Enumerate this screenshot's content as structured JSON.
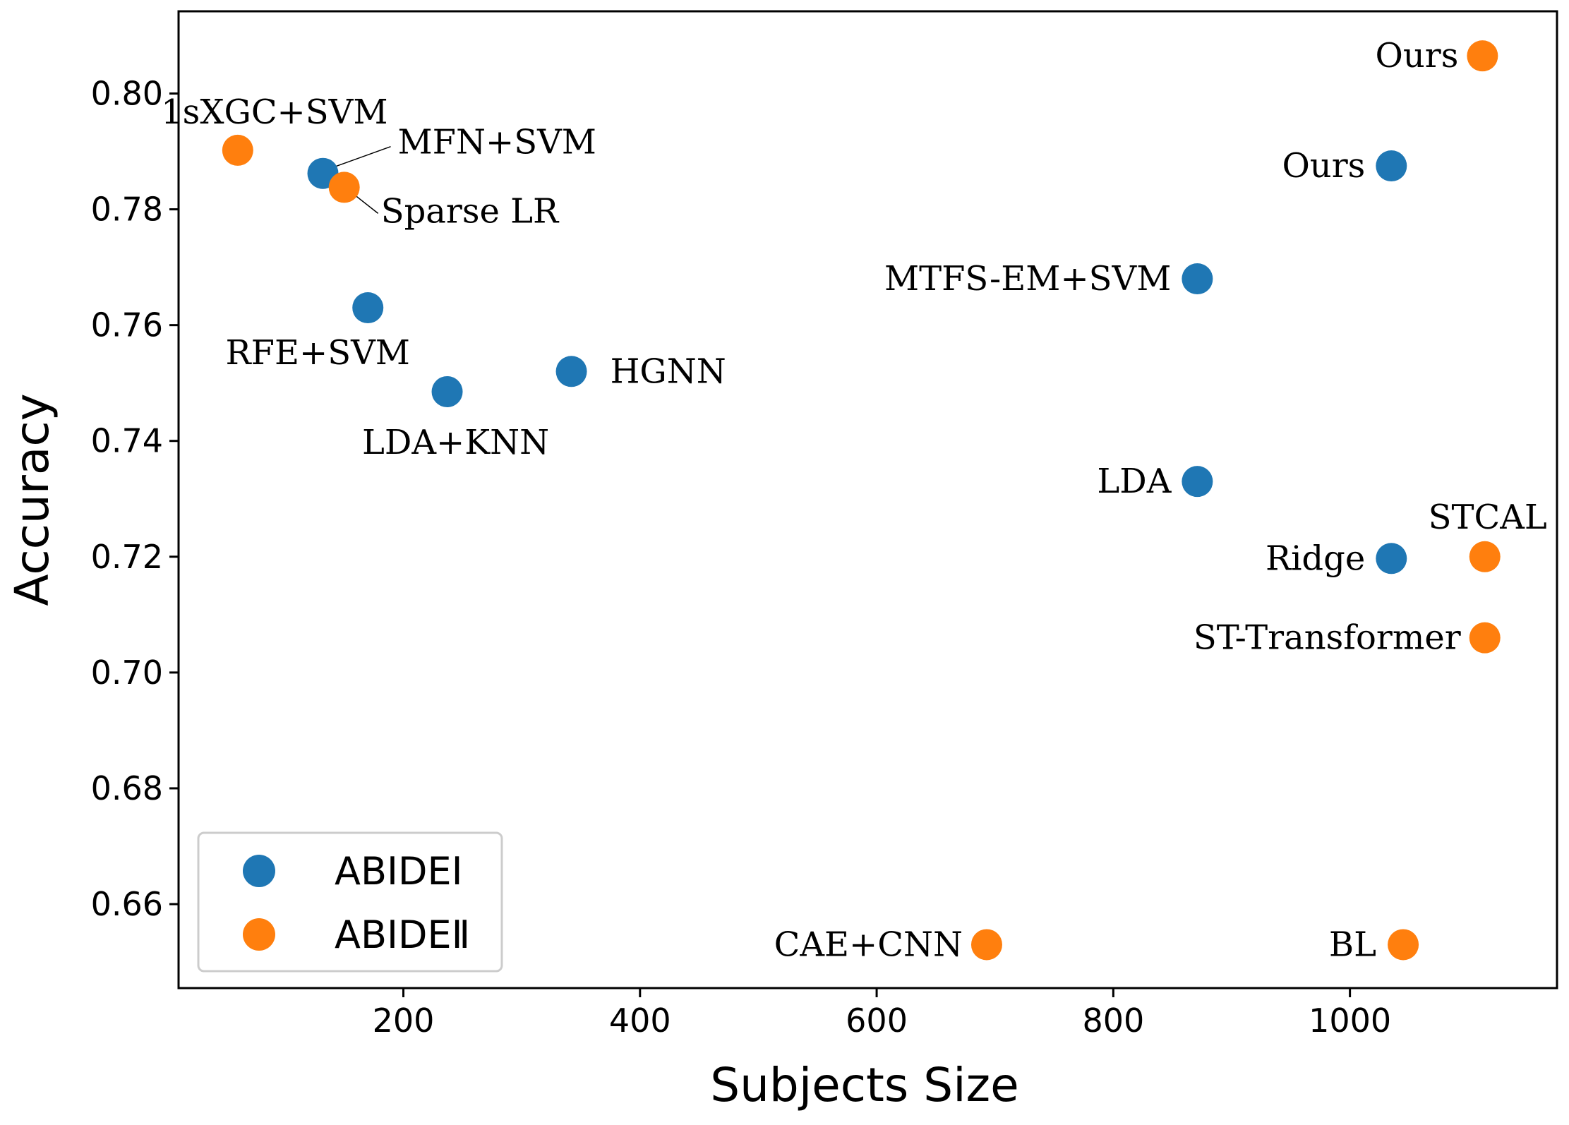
{
  "chart_data": {
    "type": "scatter",
    "title": "",
    "xlabel": "Subjects Size",
    "ylabel": "Accuracy",
    "xlim": [
      10,
      1175
    ],
    "ylim": [
      0.6455,
      0.8142
    ],
    "xticks": [
      200,
      400,
      600,
      800,
      1000
    ],
    "yticks": [
      0.66,
      0.68,
      0.7,
      0.72,
      0.74,
      0.76,
      0.78,
      0.8
    ],
    "grid": false,
    "legend_position": "lower-left",
    "series": [
      {
        "name": "ABIDEI",
        "color": "#1f77b4",
        "points": [
          {
            "x": 132,
            "y": 0.7862,
            "label": "MFN+SVM"
          },
          {
            "x": 170,
            "y": 0.763,
            "label": "RFE+SVM"
          },
          {
            "x": 237,
            "y": 0.7485,
            "label": "LDA+KNN"
          },
          {
            "x": 342,
            "y": 0.752,
            "label": "HGNN"
          },
          {
            "x": 871,
            "y": 0.768,
            "label": "MTFS-EM+SVM"
          },
          {
            "x": 871,
            "y": 0.733,
            "label": "LDA"
          },
          {
            "x": 1035,
            "y": 0.7875,
            "label": "Ours"
          },
          {
            "x": 1035,
            "y": 0.7197,
            "label": "Ridge"
          }
        ]
      },
      {
        "name": "ABIDEⅡ",
        "color": "#ff7f0e",
        "points": [
          {
            "x": 60,
            "y": 0.7902,
            "label": "1sXGC+SVM"
          },
          {
            "x": 150,
            "y": 0.7838,
            "label": "Sparse LR"
          },
          {
            "x": 693,
            "y": 0.653,
            "label": "CAE+CNN"
          },
          {
            "x": 1045,
            "y": 0.653,
            "label": "BL"
          },
          {
            "x": 1112,
            "y": 0.8065,
            "label": "Ours"
          },
          {
            "x": 1114,
            "y": 0.72,
            "label": "STCAL"
          },
          {
            "x": 1114,
            "y": 0.706,
            "label": "ST-Transformer"
          }
        ]
      }
    ]
  }
}
